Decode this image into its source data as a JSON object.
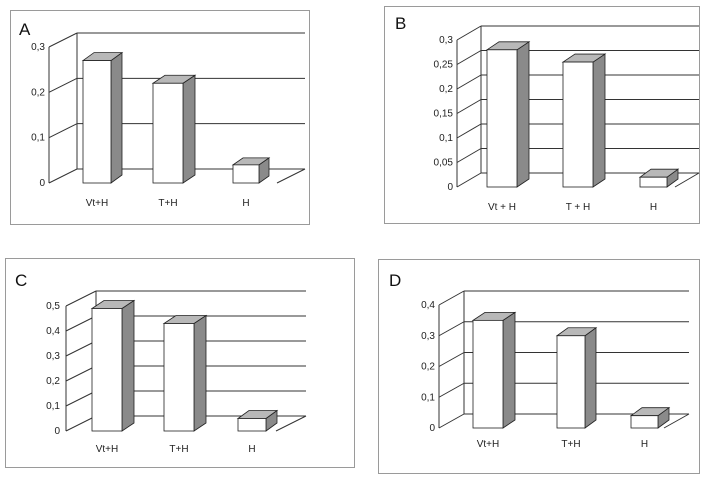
{
  "chart_data": [
    {
      "type": "bar",
      "panel_label": "A",
      "categories": [
        "Vt+H",
        "T+H",
        "H"
      ],
      "values": [
        0.27,
        0.22,
        0.04
      ],
      "ylim": [
        0,
        0.3
      ],
      "yticks": [
        "0",
        "0,1",
        "0,2",
        "0,3"
      ],
      "ytick_values": [
        0,
        0.1,
        0.2,
        0.3
      ],
      "grid": true,
      "title": "",
      "xlabel": "",
      "ylabel": ""
    },
    {
      "type": "bar",
      "panel_label": "B",
      "categories": [
        "Vt + H",
        "T + H",
        "H"
      ],
      "values": [
        0.28,
        0.255,
        0.02
      ],
      "ylim": [
        0,
        0.3
      ],
      "yticks": [
        "0",
        "0,05",
        "0,1",
        "0,15",
        "0,2",
        "0,25",
        "0,3"
      ],
      "ytick_values": [
        0,
        0.05,
        0.1,
        0.15,
        0.2,
        0.25,
        0.3
      ],
      "grid": true,
      "title": "",
      "xlabel": "",
      "ylabel": ""
    },
    {
      "type": "bar",
      "panel_label": "C",
      "categories": [
        "Vt+H",
        "T+H",
        "H"
      ],
      "values": [
        0.49,
        0.43,
        0.05
      ],
      "ylim": [
        0,
        0.5
      ],
      "yticks": [
        "0",
        "0,1",
        "0,2",
        "0,3",
        "0,4",
        "0,5"
      ],
      "ytick_values": [
        0,
        0.1,
        0.2,
        0.3,
        0.4,
        0.5
      ],
      "grid": true,
      "title": "",
      "xlabel": "",
      "ylabel": ""
    },
    {
      "type": "bar",
      "panel_label": "D",
      "categories": [
        "Vt+H",
        "T+H",
        "H"
      ],
      "values": [
        0.35,
        0.3,
        0.04
      ],
      "ylim": [
        0,
        0.4
      ],
      "yticks": [
        "0",
        "0,1",
        "0,2",
        "0,3",
        "0,4"
      ],
      "ytick_values": [
        0,
        0.1,
        0.2,
        0.3,
        0.4
      ],
      "grid": true,
      "title": "",
      "xlabel": "",
      "ylabel": ""
    }
  ],
  "colors": {
    "bar_front": "#ffffff",
    "bar_top": "#b8b8b8",
    "bar_side": "#8a8a8a",
    "grid": "#333333",
    "frame": "#9a9a9a"
  }
}
